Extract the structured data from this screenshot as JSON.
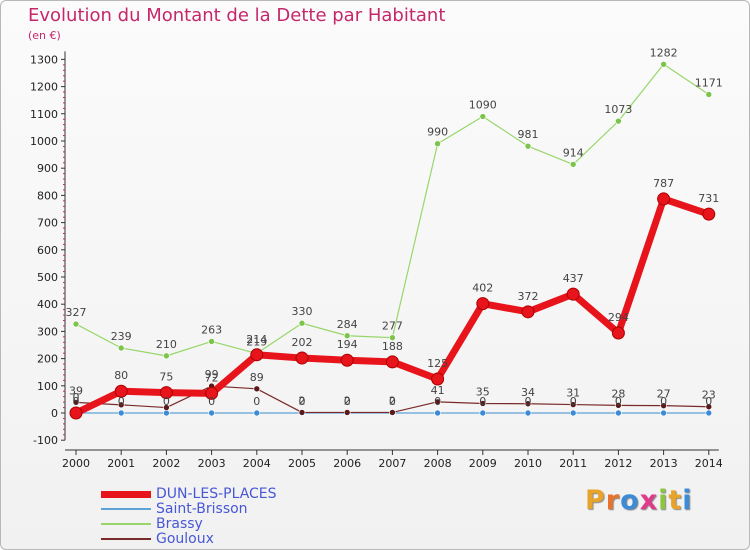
{
  "header": {
    "title": "Evolution du Montant de la Dette par Habitant",
    "unit": "(en €)"
  },
  "brand": {
    "text": "Proxiti",
    "letter_colors": [
      "#e8a32a",
      "#e8732a",
      "#3c8bd6",
      "#e03a8a",
      "#8cc63f",
      "#e8a32a",
      "#3c8bd6"
    ]
  },
  "chart_data": {
    "type": "line",
    "title": "Evolution du Montant de la Dette par Habitant",
    "ylabel": "(en €)",
    "x": [
      "2000",
      "2001",
      "2002",
      "2003",
      "2004",
      "2005",
      "2006",
      "2007",
      "2008",
      "2009",
      "2010",
      "2011",
      "2012",
      "2013",
      "2014"
    ],
    "ylim": [
      -100,
      1300
    ],
    "yticks": [
      -100,
      0,
      100,
      200,
      300,
      400,
      500,
      600,
      700,
      800,
      900,
      1000,
      1100,
      1200,
      1300
    ],
    "grid": false,
    "legend_position": "bottom-left",
    "series": [
      {
        "name": "DUN-LES-PLACES",
        "color": "#e8141c",
        "marker": "#b80d12",
        "values": [
          0,
          80,
          75,
          72,
          214,
          202,
          194,
          188,
          125,
          402,
          372,
          437,
          294,
          787,
          731
        ]
      },
      {
        "name": "Saint-Brisson",
        "color": "#5ea2d8",
        "marker": "#3c8bd6",
        "values": [
          0,
          0,
          0,
          0,
          0,
          0,
          0,
          0,
          0,
          0,
          0,
          0,
          0,
          0,
          0
        ]
      },
      {
        "name": "Brassy",
        "color": "#98d66b",
        "marker": "#7cc44a",
        "values": [
          327,
          239,
          210,
          263,
          219,
          330,
          284,
          277,
          990,
          1090,
          981,
          914,
          1073,
          1282,
          1171
        ]
      },
      {
        "name": "Gouloux",
        "color": "#7a2a2a",
        "marker": "#5a1a1a",
        "values": [
          39,
          30,
          20,
          99,
          89,
          2,
          2,
          2,
          41,
          35,
          34,
          31,
          28,
          27,
          23
        ]
      }
    ],
    "point_labels": [
      {
        "series": "Brassy",
        "values": [
          "327",
          "239",
          "210",
          "263",
          "219",
          "330",
          "284",
          "277",
          "990",
          "1090",
          "981",
          "914",
          "1073",
          "1282",
          "1171"
        ]
      },
      {
        "series": "DUN-LES-PLACES",
        "values": [
          "0",
          "80",
          "75",
          "72",
          "214",
          "202",
          "194",
          "188",
          "125",
          "402",
          "372",
          "437",
          "294",
          "787",
          "731"
        ]
      },
      {
        "series": "Gouloux",
        "values": [
          "39",
          "",
          "",
          "99",
          "89",
          "2",
          "2",
          "2",
          "41",
          "35",
          "34",
          "31",
          "28",
          "27",
          "23"
        ]
      },
      {
        "series": "Saint-Brisson",
        "values": [
          "0",
          "0",
          "0",
          "0",
          "0",
          "0",
          "0",
          "0",
          "0",
          "0",
          "0",
          "0",
          "0",
          "0",
          "0"
        ]
      }
    ]
  }
}
